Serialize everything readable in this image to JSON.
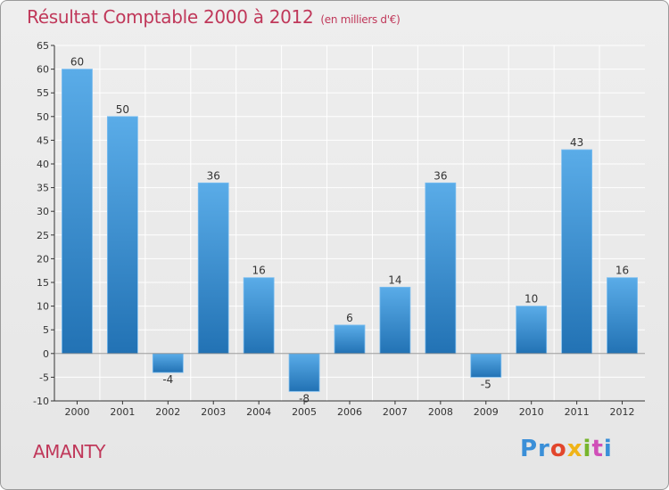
{
  "header": {
    "title": "Résultat Comptable 2000 à 2012",
    "subtitle": "(en milliers d'€)"
  },
  "footer": {
    "town": "AMANTY",
    "brand": [
      "Pr",
      "o",
      "x",
      "i",
      "t",
      "i"
    ]
  },
  "colors": {
    "title": "#c0385a",
    "bar_light": "#5aace8",
    "bar_dark": "#2272b4",
    "grid": "#ffffff",
    "axis": "#333333"
  },
  "chart_data": {
    "type": "bar",
    "title": "Résultat Comptable 2000 à 2012",
    "xlabel": "",
    "ylabel": "",
    "categories": [
      "2000",
      "2001",
      "2002",
      "2003",
      "2004",
      "2005",
      "2006",
      "2007",
      "2008",
      "2009",
      "2010",
      "2011",
      "2012"
    ],
    "values": [
      60,
      50,
      -4,
      36,
      16,
      -8,
      6,
      14,
      36,
      -5,
      10,
      43,
      16
    ],
    "ylim": [
      -10,
      65
    ],
    "yticks": [
      -10,
      -5,
      0,
      5,
      10,
      15,
      20,
      25,
      30,
      35,
      40,
      45,
      50,
      55,
      60,
      65
    ],
    "grid": true,
    "data_labels": true
  }
}
